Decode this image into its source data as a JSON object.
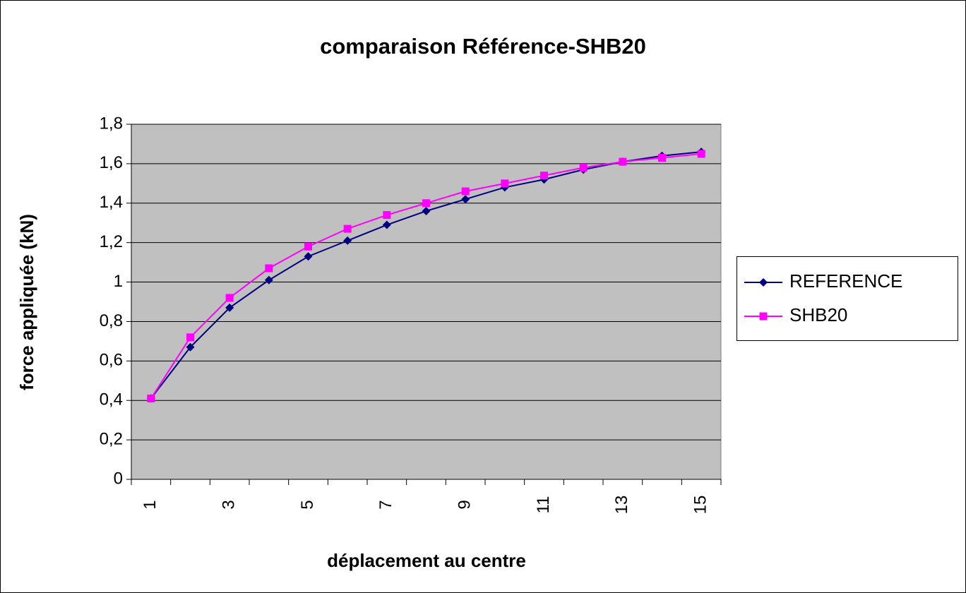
{
  "chart_data": {
    "type": "line",
    "title": "comparaison Référence-SHB20",
    "x_label": "déplacement au centre",
    "y_label": "force appliquée (kN)",
    "categories": [
      "1",
      null,
      "3",
      null,
      "5",
      null,
      "7",
      null,
      "9",
      null,
      "11",
      null,
      "13",
      null,
      "15"
    ],
    "series": [
      {
        "name": "REFERENCE",
        "color": "#000080",
        "marker": "diamond",
        "values": [
          0.41,
          0.67,
          0.87,
          1.01,
          1.13,
          1.21,
          1.29,
          1.36,
          1.42,
          1.48,
          1.52,
          1.57,
          1.61,
          1.64,
          1.66
        ]
      },
      {
        "name": "SHB20",
        "color": "#ff00ff",
        "marker": "square",
        "values": [
          0.41,
          0.72,
          0.92,
          1.07,
          1.18,
          1.27,
          1.34,
          1.4,
          1.46,
          1.5,
          1.54,
          1.58,
          1.61,
          1.63,
          1.65
        ]
      }
    ],
    "ylim": [
      0,
      1.8
    ],
    "yticks": [
      0,
      {
        "value": 0.2,
        "label": "0,2"
      },
      {
        "value": 0.4,
        "label": "0,4"
      },
      {
        "value": 0.6,
        "label": "0,6"
      },
      {
        "value": 0.8,
        "label": "0,8"
      },
      1,
      {
        "value": 1.2,
        "label": "1,2"
      },
      {
        "value": 1.4,
        "label": "1,4"
      },
      {
        "value": 1.6,
        "label": "1,6"
      },
      {
        "value": 1.8,
        "label": "1,8"
      }
    ],
    "grid": true,
    "legend": "right",
    "plot_background": "#c0c0c0"
  }
}
